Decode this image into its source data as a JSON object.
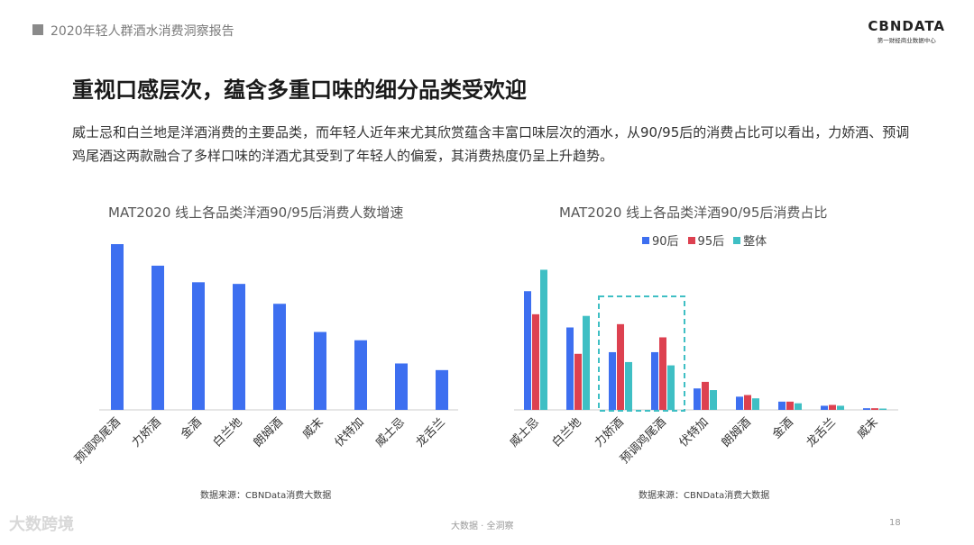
{
  "header": {
    "title": "2020年轻人群酒水消费洞察报告"
  },
  "logo": {
    "text": "CBNDATA",
    "subtitle": "第一财经商业数据中心"
  },
  "page": {
    "title": "重视口感层次，蕴含多重口味的细分品类受欢迎",
    "body": "威士忌和白兰地是洋酒消费的主要品类，而年轻人近年来尤其欣赏蕴含丰富口味层次的酒水，从90/95后的消费占比可以看出，力娇酒、预调鸡尾酒这两款融合了多样口味的洋酒尤其受到了年轻人的偏爱，其消费热度仍呈上升趋势。"
  },
  "colors": {
    "blue": "#3d6ff0",
    "red": "#dd4150",
    "teal": "#3fbfc4",
    "highlight": "#3fbfc4"
  },
  "chart_data": [
    {
      "type": "bar",
      "title": "MAT2020 线上各品类洋酒90/95后消费人数增速",
      "categories": [
        "预调鸡尾酒",
        "力娇酒",
        "金酒",
        "白兰地",
        "朗姆酒",
        "威末",
        "伏特加",
        "威士忌",
        "龙舌兰"
      ],
      "values": [
        100,
        87,
        77,
        76,
        64,
        47,
        42,
        28,
        24
      ],
      "ylim": [
        0,
        100
      ],
      "source": "数据来源：CBNData消费大数据"
    },
    {
      "type": "bar",
      "title": "MAT2020 线上各品类洋酒90/95后消费占比",
      "categories": [
        "威士忌",
        "白兰地",
        "力娇酒",
        "预调鸡尾酒",
        "伏特加",
        "朗姆酒",
        "金酒",
        "龙舌兰",
        "威末"
      ],
      "series": [
        {
          "name": "90后",
          "color": "#3d6ff0",
          "values": [
            72,
            50,
            35,
            35,
            13,
            8,
            5,
            2.5,
            1
          ]
        },
        {
          "name": "95后",
          "color": "#dd4150",
          "values": [
            58,
            34,
            52,
            44,
            17,
            9,
            5,
            3,
            1
          ]
        },
        {
          "name": "整体",
          "color": "#3fbfc4",
          "values": [
            85,
            57,
            29,
            27,
            12,
            7,
            4,
            2.5,
            0.8
          ]
        }
      ],
      "ylim": [
        0,
        100
      ],
      "highlight_categories": [
        "力娇酒",
        "预调鸡尾酒"
      ],
      "source": "数据来源：CBNData消费大数据"
    }
  ],
  "footer": {
    "text": "大数据 · 全洞察",
    "page_number": "18",
    "watermark": "大数跨境"
  }
}
